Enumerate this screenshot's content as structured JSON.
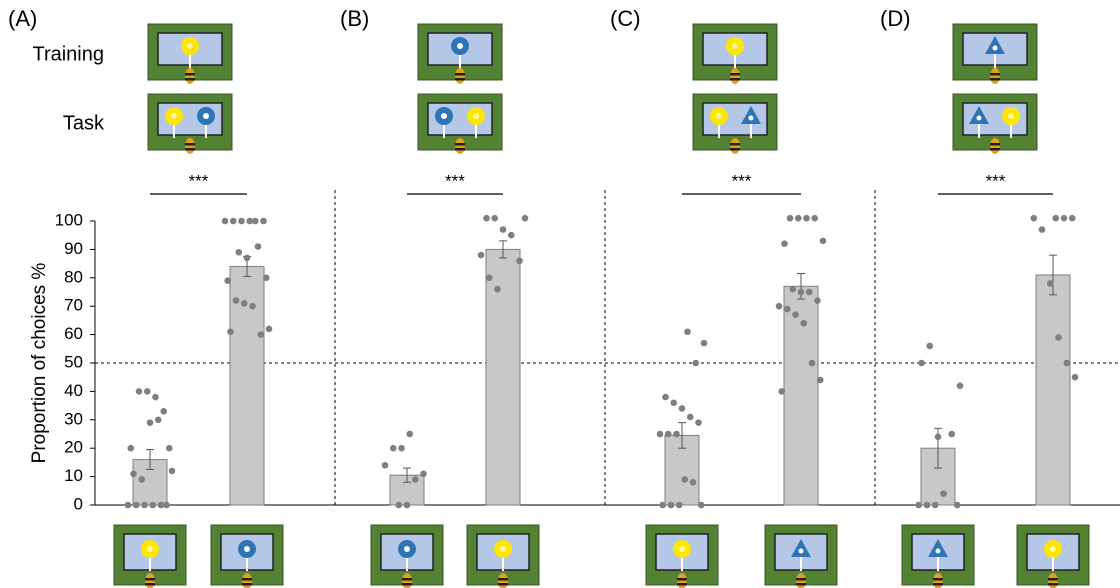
{
  "row_labels": [
    "Training",
    "Task"
  ],
  "chart_data": [
    {
      "type": "bar",
      "title": "(A)",
      "ylabel": "Proportion of choices  %",
      "ylim": [
        0,
        100
      ],
      "yticks": [
        0,
        10,
        20,
        30,
        40,
        50,
        60,
        70,
        80,
        90,
        100
      ],
      "reference_line": 50,
      "significance": "***",
      "color": "#c8c8c8",
      "point_color": "#7f7f7f",
      "categories": [
        null,
        null
      ],
      "values": [
        16,
        84
      ],
      "errors": [
        3.5,
        3.5
      ],
      "points": [
        [
          0,
          0,
          0,
          0,
          0,
          20,
          20,
          40,
          40,
          38,
          33,
          12,
          11,
          9,
          29,
          30,
          0
        ],
        [
          100,
          100,
          100,
          100,
          100,
          100,
          91,
          80,
          79,
          72,
          71,
          70,
          60,
          62,
          61,
          89,
          87
        ]
      ]
    },
    {
      "type": "bar",
      "title": "(B)",
      "ylim": [
        0,
        100
      ],
      "reference_line": 50,
      "significance": "***",
      "color": "#c8c8c8",
      "point_color": "#7f7f7f",
      "categories": [
        null,
        null
      ],
      "values": [
        10.5,
        90
      ],
      "errors": [
        2.5,
        3
      ],
      "points": [
        [
          0,
          0,
          9,
          11,
          14,
          20,
          20,
          25
        ],
        [
          101,
          101,
          101,
          97,
          95,
          86,
          88,
          80,
          76
        ]
      ]
    },
    {
      "type": "bar",
      "title": "(C)",
      "ylim": [
        0,
        100
      ],
      "reference_line": 50,
      "significance": "***",
      "color": "#c8c8c8",
      "point_color": "#7f7f7f",
      "categories": [
        null,
        null
      ],
      "values": [
        24.5,
        77
      ],
      "errors": [
        4.5,
        4.5
      ],
      "points": [
        [
          61,
          50,
          57,
          38,
          36,
          34,
          31,
          29,
          25,
          25,
          25,
          9,
          8,
          0,
          0,
          0,
          0
        ],
        [
          101,
          101,
          101,
          101,
          93,
          92,
          76,
          75,
          75,
          72,
          70,
          69,
          67,
          64,
          50,
          44,
          40
        ]
      ]
    },
    {
      "type": "bar",
      "title": "(D)",
      "ylim": [
        0,
        100
      ],
      "reference_line": 50,
      "significance": "***",
      "color": "#c8c8c8",
      "point_color": "#7f7f7f",
      "categories": [
        null,
        null
      ],
      "values": [
        20,
        81
      ],
      "errors": [
        7,
        7
      ],
      "points": [
        [
          0,
          0,
          0,
          0,
          4,
          25,
          42,
          50,
          56,
          24
        ],
        [
          101,
          101,
          101,
          101,
          97,
          78,
          59,
          50,
          45
        ]
      ]
    }
  ]
}
